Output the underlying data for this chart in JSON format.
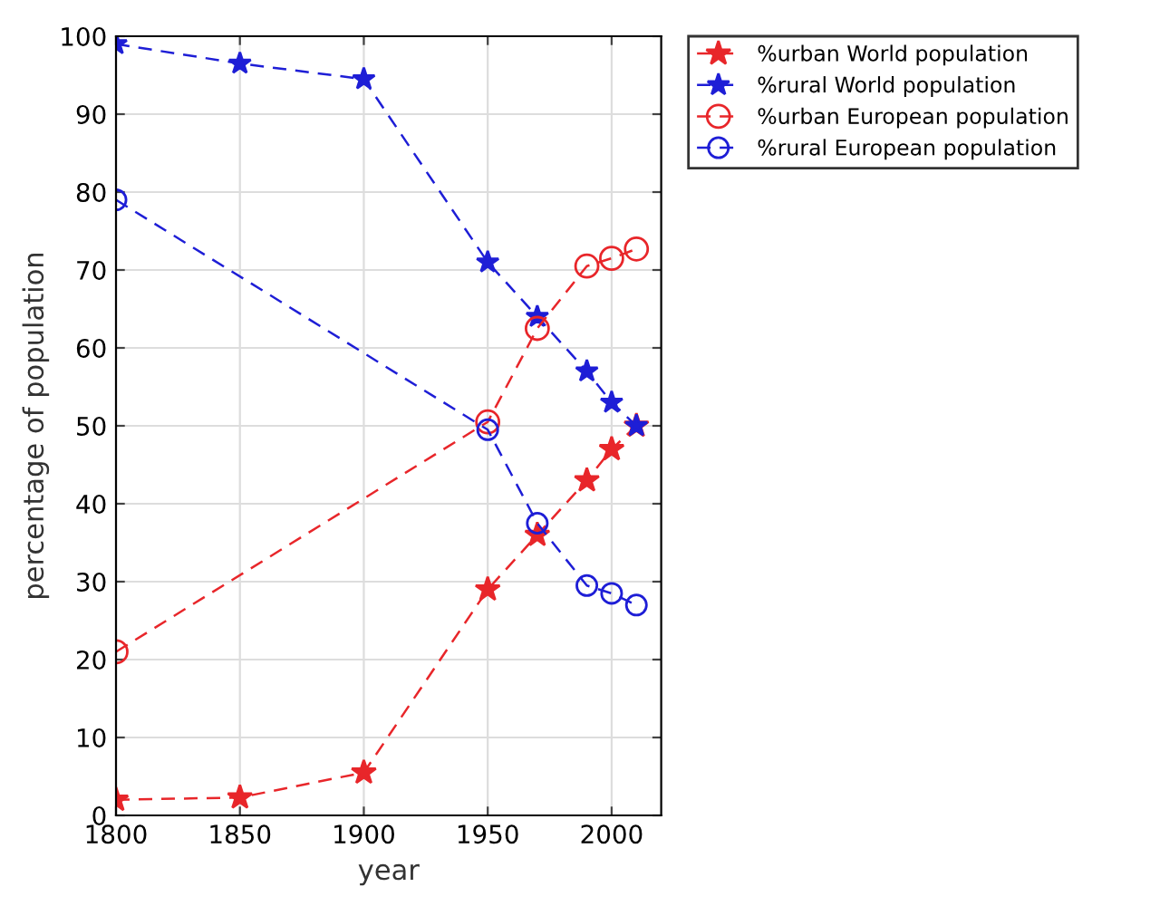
{
  "chart_data": {
    "type": "line",
    "xlabel": "year",
    "ylabel": "percentage of population",
    "xlim": [
      1800,
      2020
    ],
    "xticks": [
      1800,
      1850,
      1900,
      1950,
      2000
    ],
    "ylim": [
      0,
      100
    ],
    "yticks": [
      0,
      10,
      20,
      30,
      40,
      50,
      60,
      70,
      80,
      90,
      100
    ],
    "grid": true,
    "legend": "top right",
    "line_style": "dashed",
    "series": [
      {
        "name": "%urban World population",
        "color": "#e8262a",
        "marker": "star",
        "x": [
          1800,
          1850,
          1900,
          1950,
          1970,
          1990,
          2000,
          2010
        ],
        "values": [
          2,
          2.3,
          5.5,
          29,
          36,
          43,
          47,
          50
        ]
      },
      {
        "name": "%rural World population",
        "color": "#1e1ed6",
        "marker": "star",
        "x": [
          1800,
          1850,
          1900,
          1950,
          1970,
          1990,
          2000,
          2010
        ],
        "values": [
          99,
          96.5,
          94.5,
          71,
          64,
          57,
          53,
          50
        ]
      },
      {
        "name": "%urban European population",
        "color": "#e8262a",
        "marker": "circle",
        "x": [
          1800,
          1950,
          1970,
          1990,
          2000,
          2010
        ],
        "values": [
          21,
          50.5,
          62.5,
          70.5,
          71.5,
          72.7
        ]
      },
      {
        "name": "%rural European population",
        "color": "#1e1ed6",
        "marker": "circle",
        "x": [
          1800,
          1950,
          1970,
          1990,
          2000,
          2010
        ],
        "values": [
          79,
          49.5,
          37.5,
          29.5,
          28.5,
          27
        ]
      }
    ]
  }
}
